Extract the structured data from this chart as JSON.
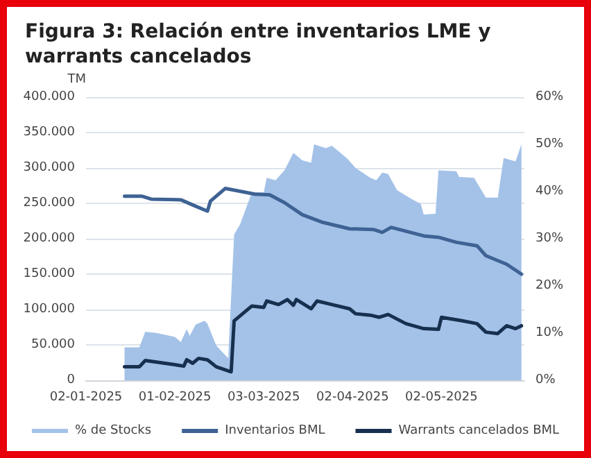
{
  "chart_data": {
    "type": "line",
    "title": "Figura 3: Relación entre inventarios LME y warrants cancelados",
    "ylabel": "TM",
    "xlim": [
      "2025-01-02",
      "2025-05-30"
    ],
    "xticks": [
      {
        "value": "2025-01-02",
        "label": "02-01-2025"
      },
      {
        "value": "2025-02-01",
        "label": "01-02-2025"
      },
      {
        "value": "2025-03-03",
        "label": "03-03-2025"
      },
      {
        "value": "2025-04-02",
        "label": "02-04-2025"
      },
      {
        "value": "2025-05-02",
        "label": "02-05-2025"
      }
    ],
    "ylim": [
      0,
      400000
    ],
    "yticks": [
      {
        "value": 0,
        "label": "0"
      },
      {
        "value": 50000,
        "label": "50.000"
      },
      {
        "value": 100000,
        "label": "100.000"
      },
      {
        "value": 150000,
        "label": "150.000"
      },
      {
        "value": 200000,
        "label": "200.000"
      },
      {
        "value": 250000,
        "label": "250.000"
      },
      {
        "value": 300000,
        "label": "300.000"
      },
      {
        "value": 350000,
        "label": "350.000"
      },
      {
        "value": 400000,
        "label": "400.000"
      }
    ],
    "y2lim": [
      0,
      60
    ],
    "y2ticks": [
      {
        "value": 0,
        "label": "0%"
      },
      {
        "value": 10,
        "label": "10%"
      },
      {
        "value": 20,
        "label": "20%"
      },
      {
        "value": 30,
        "label": "30%"
      },
      {
        "value": 40,
        "label": "40%"
      },
      {
        "value": 50,
        "label": "50%"
      },
      {
        "value": 60,
        "label": "60%"
      }
    ],
    "grid": "y",
    "legend": "bottom",
    "marker": "none",
    "series": [
      {
        "name": "% de Stocks",
        "type": "area",
        "axis": "y2",
        "color": "#a4c2e8",
        "x": [
          "2025-01-15",
          "2025-01-20",
          "2025-01-22",
          "2025-01-26",
          "2025-02-01",
          "2025-02-03",
          "2025-02-05",
          "2025-02-06",
          "2025-02-08",
          "2025-02-11",
          "2025-02-12",
          "2025-02-15",
          "2025-02-19",
          "2025-02-21",
          "2025-02-23",
          "2025-02-27",
          "2025-03-03",
          "2025-03-04",
          "2025-03-07",
          "2025-03-10",
          "2025-03-13",
          "2025-03-16",
          "2025-03-19",
          "2025-03-20",
          "2025-03-24",
          "2025-03-26",
          "2025-03-31",
          "2025-04-03",
          "2025-04-08",
          "2025-04-10",
          "2025-04-12",
          "2025-04-14",
          "2025-04-17",
          "2025-04-22",
          "2025-04-25",
          "2025-04-26",
          "2025-04-30",
          "2025-05-01",
          "2025-05-07",
          "2025-05-08",
          "2025-05-13",
          "2025-05-17",
          "2025-05-21",
          "2025-05-23",
          "2025-05-27",
          "2025-05-29"
        ],
        "values": [
          7.0,
          7.0,
          10.3,
          10.0,
          9.2,
          8.1,
          10.8,
          9.4,
          11.8,
          12.6,
          12.0,
          7.3,
          4.7,
          30.9,
          33.0,
          39.8,
          39.8,
          42.9,
          42.4,
          44.5,
          48.2,
          46.6,
          46.1,
          50.0,
          49.2,
          49.7,
          47.1,
          45.0,
          42.9,
          42.4,
          44.0,
          43.7,
          40.3,
          38.4,
          37.4,
          35.1,
          35.3,
          44.5,
          44.3,
          43.1,
          42.9,
          38.7,
          38.7,
          47.1,
          46.4,
          50.0
        ]
      },
      {
        "name": "Inventarios BML",
        "color": "#3e6294",
        "x": [
          "2025-01-15",
          "2025-01-21",
          "2025-01-24",
          "2025-02-03",
          "2025-02-08",
          "2025-02-12",
          "2025-02-13",
          "2025-02-18",
          "2025-02-28",
          "2025-03-05",
          "2025-03-10",
          "2025-03-16",
          "2025-03-23",
          "2025-04-01",
          "2025-04-09",
          "2025-04-12",
          "2025-04-15",
          "2025-04-26",
          "2025-05-01",
          "2025-05-07",
          "2025-05-14",
          "2025-05-17",
          "2025-05-24",
          "2025-05-29"
        ],
        "values": [
          260000,
          260000,
          256000,
          255000,
          246000,
          239000,
          253000,
          271000,
          263000,
          262000,
          251000,
          234000,
          223000,
          214000,
          213000,
          209000,
          216000,
          204000,
          202000,
          195000,
          190000,
          176000,
          164000,
          150000
        ]
      },
      {
        "name": "Warrants cancelados BML",
        "color": "#18304f",
        "x": [
          "2025-01-15",
          "2025-01-20",
          "2025-01-22",
          "2025-02-01",
          "2025-02-04",
          "2025-02-05",
          "2025-02-07",
          "2025-02-09",
          "2025-02-12",
          "2025-02-15",
          "2025-02-20",
          "2025-02-21",
          "2025-02-27",
          "2025-03-03",
          "2025-03-04",
          "2025-03-08",
          "2025-03-11",
          "2025-03-13",
          "2025-03-14",
          "2025-03-19",
          "2025-03-21",
          "2025-03-26",
          "2025-04-01",
          "2025-04-03",
          "2025-04-08",
          "2025-04-11",
          "2025-04-14",
          "2025-04-20",
          "2025-04-26",
          "2025-05-01",
          "2025-05-02",
          "2025-05-09",
          "2025-05-14",
          "2025-05-17",
          "2025-05-21",
          "2025-05-24",
          "2025-05-27",
          "2025-05-29"
        ],
        "values": [
          19000,
          19000,
          28000,
          22000,
          20000,
          29000,
          24000,
          31000,
          29000,
          19000,
          12000,
          84000,
          105000,
          103000,
          112000,
          107000,
          114000,
          106000,
          114000,
          101000,
          112000,
          107000,
          101000,
          94000,
          92000,
          89000,
          93000,
          80000,
          73000,
          72000,
          89000,
          84000,
          80000,
          68000,
          66000,
          77000,
          73000,
          77000
        ]
      }
    ]
  }
}
